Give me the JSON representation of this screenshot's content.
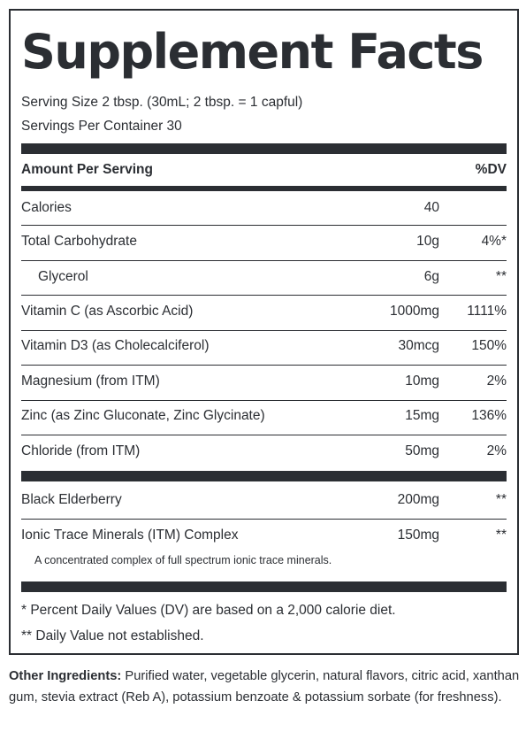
{
  "title": "Supplement Facts",
  "serving_size": "Serving Size 2 tbsp. (30mL; 2 tbsp. = 1 capful)",
  "servings_per_container": "Servings Per Container 30",
  "header": {
    "amount_label": "Amount Per Serving",
    "dv_label": "%DV"
  },
  "nutrients": [
    {
      "name": "Calories",
      "amount": "40",
      "dv": ""
    },
    {
      "name": "Total Carbohydrate",
      "amount": "10g",
      "dv": "4%*"
    },
    {
      "name": "Glycerol",
      "amount": "6g",
      "dv": "**"
    },
    {
      "name": "Vitamin C (as Ascorbic Acid)",
      "amount": "1000mg",
      "dv": "1111%"
    },
    {
      "name": "Vitamin D3 (as Cholecalciferol)",
      "amount": "30mcg",
      "dv": "150%"
    },
    {
      "name": "Magnesium (from ITM)",
      "amount": "10mg",
      "dv": "2%"
    },
    {
      "name": "Zinc (as Zinc Gluconate, Zinc Glycinate)",
      "amount": "15mg",
      "dv": "136%"
    },
    {
      "name": "Chloride (from ITM)",
      "amount": "50mg",
      "dv": "2%"
    }
  ],
  "other_nutrients": [
    {
      "name": "Black Elderberry",
      "amount": "200mg",
      "dv": "**"
    },
    {
      "name": "Ionic Trace Minerals (ITM) Complex",
      "amount": "150mg",
      "dv": "**",
      "note": "A concentrated complex of full spectrum ionic trace minerals."
    }
  ],
  "footnotes": [
    "* Percent Daily Values (DV) are based on a 2,000 calorie diet.",
    "** Daily Value not established."
  ],
  "other_ingredients": {
    "label": "Other Ingredients:",
    "text": "Purified water, vegetable glycerin, natural flavors, citric acid, xanthan gum, stevia extract (Reb A), potassium benzoate & potassium sorbate (for freshness)."
  }
}
